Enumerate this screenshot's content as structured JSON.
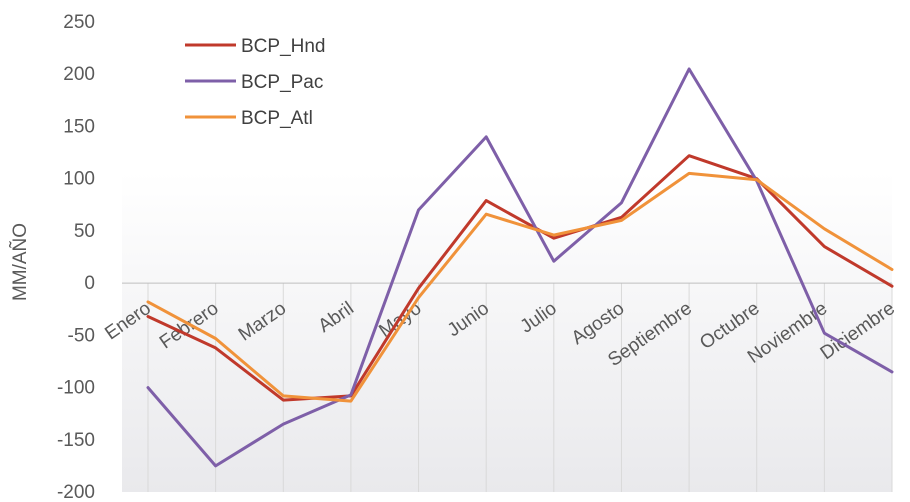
{
  "chart_data": {
    "type": "line",
    "title": "",
    "xlabel": "",
    "ylabel": "MM/AÑO",
    "ylim": [
      -200,
      250
    ],
    "yticks": [
      250,
      200,
      150,
      100,
      50,
      0,
      -50,
      -100,
      -150,
      -200
    ],
    "categories": [
      "Enero",
      "Febrero",
      "Marzo",
      "Abril",
      "Mayo",
      "Junio",
      "Julio",
      "Agosto",
      "Septiembre",
      "Octubre",
      "Noviembre",
      "Diciembre"
    ],
    "grid": "vertical",
    "legend_position": "top-left",
    "series": [
      {
        "name": "BCP_Hnd",
        "color": "#c0392b",
        "values": [
          -32,
          -62,
          -112,
          -108,
          -5,
          79,
          43,
          63,
          122,
          100,
          35,
          -3
        ]
      },
      {
        "name": "BCP_Pac",
        "color": "#7e5fa8",
        "values": [
          -100,
          -175,
          -135,
          -107,
          70,
          140,
          21,
          77,
          205,
          98,
          -48,
          -85
        ]
      },
      {
        "name": "BCP_Atl",
        "color": "#f0923a",
        "values": [
          -18,
          -53,
          -108,
          -113,
          -14,
          66,
          46,
          60,
          105,
          99,
          52,
          13
        ]
      }
    ]
  }
}
